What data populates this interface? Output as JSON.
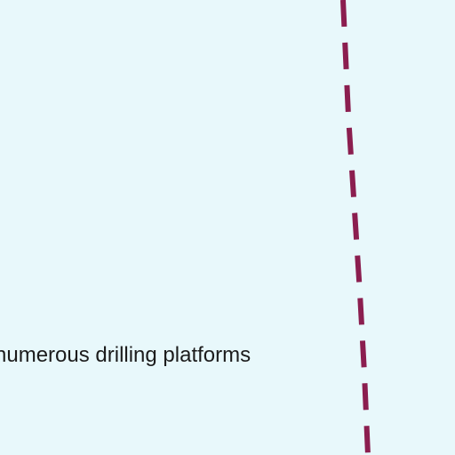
{
  "map": {
    "background_color": "#e8f8fb",
    "boundary": {
      "style": "dashed",
      "color": "#8b1e4f"
    },
    "labels": {
      "drilling_platforms": "numerous drilling platforms"
    }
  }
}
